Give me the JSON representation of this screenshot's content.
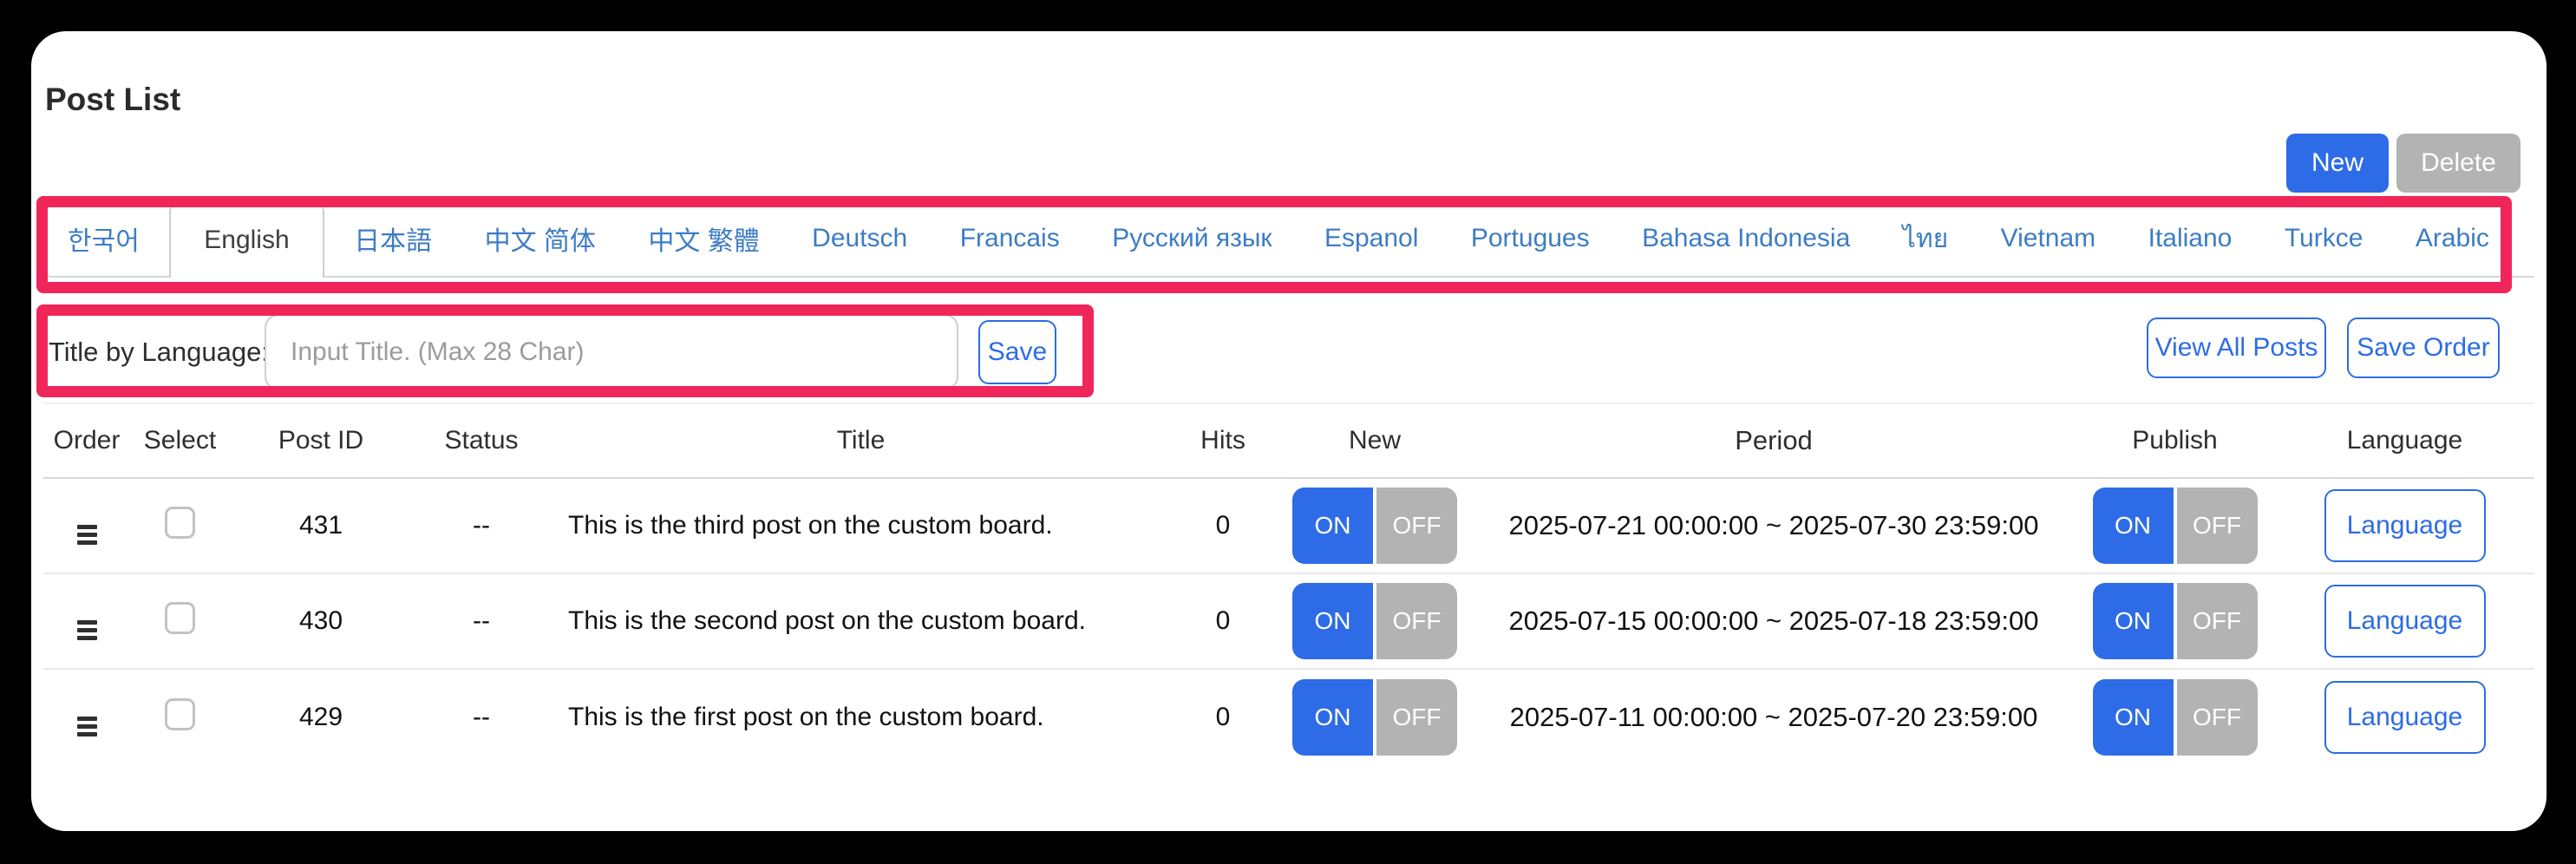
{
  "page": {
    "title": "Post List"
  },
  "header_actions": {
    "new_label": "New",
    "delete_label": "Delete"
  },
  "tabs": {
    "active": "English",
    "items": [
      "한국어",
      "English",
      "日本語",
      "中文 简体",
      "中文 繁體",
      "Deutsch",
      "Francais",
      "Русский язык",
      "Espanol",
      "Portugues",
      "Bahasa Indonesia",
      "ไทย",
      "Vietnam",
      "Italiano",
      "Turkce",
      "Arabic"
    ]
  },
  "title_form": {
    "label": "Title by Language:",
    "value": "",
    "placeholder": "Input Title. (Max 28 Char)",
    "save_label": "Save"
  },
  "toolbar": {
    "view_all_label": "View All Posts",
    "save_order_label": "Save Order"
  },
  "table": {
    "columns": [
      "Order",
      "Select",
      "Post ID",
      "Status",
      "Title",
      "Hits",
      "New",
      "Period",
      "Publish",
      "Language"
    ],
    "toggle_on": "ON",
    "toggle_off": "OFF",
    "language_button": "Language",
    "rows": [
      {
        "selected": false,
        "post_id": "431",
        "status": "--",
        "title": "This is the third post on the custom board.",
        "hits": "0",
        "new": "on",
        "period": "2025-07-21 00:00:00 ~ 2025-07-30 23:59:00",
        "publish": "on"
      },
      {
        "selected": false,
        "post_id": "430",
        "status": "--",
        "title": "This is the second post on the custom board.",
        "hits": "0",
        "new": "on",
        "period": "2025-07-15 00:00:00 ~ 2025-07-18 23:59:00",
        "publish": "on"
      },
      {
        "selected": false,
        "post_id": "429",
        "status": "--",
        "title": "This is the first post on the custom board.",
        "hits": "0",
        "new": "on",
        "period": "2025-07-11 00:00:00 ~ 2025-07-20 23:59:00",
        "publish": "on"
      }
    ]
  },
  "colors": {
    "primary_blue": "#2d6ce6",
    "tab_link_blue": "#3d7cc4",
    "inactive_gray": "#b3b3b3",
    "annotation_pink": "#f0265a"
  }
}
